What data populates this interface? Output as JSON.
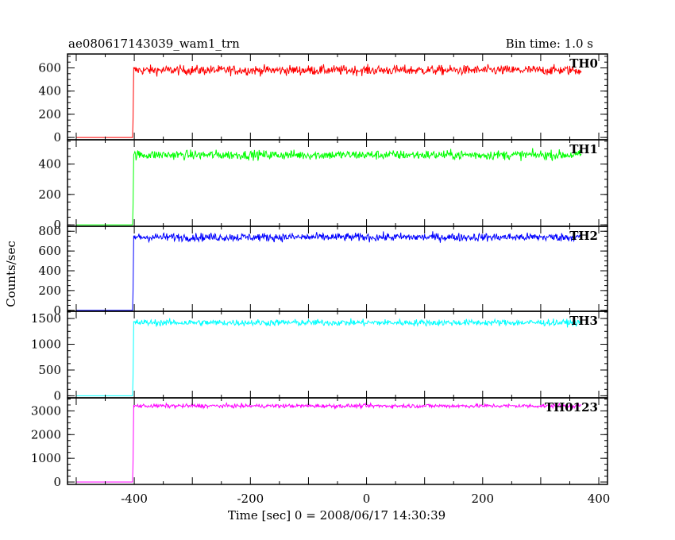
{
  "chart_data": {
    "type": "line",
    "title": "ae080617143039_wam1_trn",
    "subtitle": "Bin time: 1.0 s",
    "xlabel": "Time [sec] 0 = 2008/06/17 14:30:39",
    "ylabel": "Counts/sec",
    "xlim": [
      -515,
      415
    ],
    "xticks": [
      -400,
      -200,
      0,
      200,
      400
    ],
    "onset_time": -402,
    "x_start": -500,
    "x_end": 370,
    "panels": [
      {
        "name": "TH0",
        "color": "#ff0000",
        "ylim": [
          -20,
          720
        ],
        "yticks": [
          0,
          200,
          400,
          600
        ],
        "pre_level": 0,
        "post_level": 580,
        "noise": 30
      },
      {
        "name": "TH1",
        "color": "#00ff00",
        "ylim": [
          -10,
          560
        ],
        "yticks": [
          0,
          200,
          400
        ],
        "pre_level": 0,
        "post_level": 460,
        "noise": 22
      },
      {
        "name": "TH2",
        "color": "#0000ff",
        "ylim": [
          -10,
          850
        ],
        "yticks": [
          0,
          200,
          400,
          600,
          800
        ],
        "pre_level": 0,
        "post_level": 740,
        "noise": 30
      },
      {
        "name": "TH3",
        "color": "#00ffff",
        "ylim": [
          -40,
          1640
        ],
        "yticks": [
          0,
          500,
          1000,
          1500
        ],
        "pre_level": 0,
        "post_level": 1420,
        "noise": 45
      },
      {
        "name": "TH0123",
        "color": "#ff00ff",
        "ylim": [
          -100,
          3550
        ],
        "yticks": [
          0,
          1000,
          2000,
          3000
        ],
        "pre_level": 0,
        "post_level": 3210,
        "noise": 60
      }
    ]
  }
}
